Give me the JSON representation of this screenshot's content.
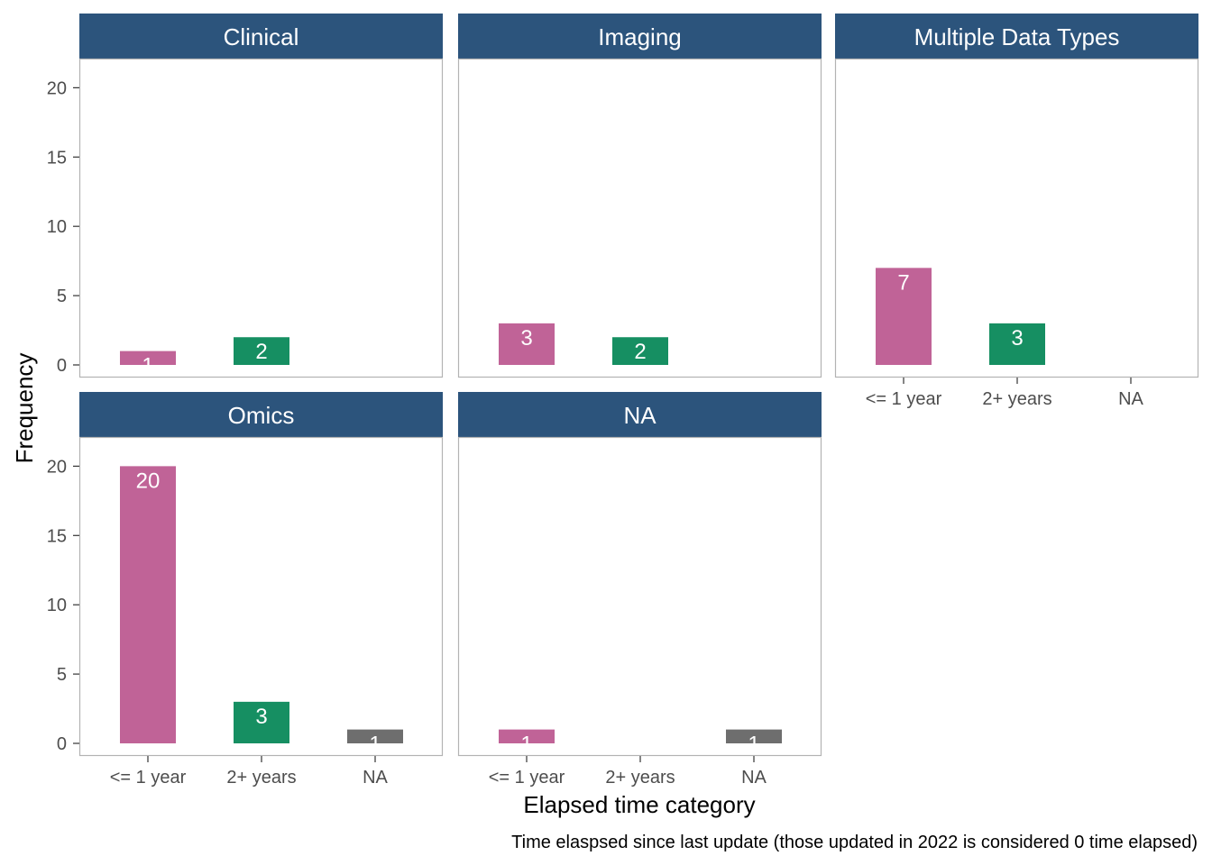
{
  "chart_data": {
    "type": "bar",
    "layout": "facet_wrap",
    "categories": [
      "<= 1 year",
      "2+ years",
      "NA"
    ],
    "ylim": [
      0,
      21
    ],
    "yticks": [
      0,
      5,
      10,
      15,
      20
    ],
    "xlabel": "Elapsed time category",
    "ylabel": "Frequency",
    "caption": "Time elaspsed since last update (those updated in 2022 is considered 0 time elapsed)",
    "grid": false,
    "colors": {
      "<= 1 year": "#c06397",
      "2+ years": "#168f62",
      "NA": "#6e6e6e",
      "strip": "#2c547c",
      "panel_border": "#b3b3b3"
    },
    "facets": [
      {
        "name": "Clinical",
        "values": [
          1,
          2,
          null
        ]
      },
      {
        "name": "Imaging",
        "values": [
          3,
          2,
          null
        ]
      },
      {
        "name": "Multiple Data Types",
        "values": [
          7,
          3,
          null
        ]
      },
      {
        "name": "Omics",
        "values": [
          20,
          3,
          1
        ]
      },
      {
        "name": "NA",
        "values": [
          1,
          null,
          1
        ]
      }
    ]
  }
}
